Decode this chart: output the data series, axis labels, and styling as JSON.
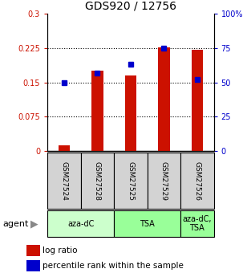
{
  "title": "GDS920 / 12756",
  "samples": [
    "GSM27524",
    "GSM27528",
    "GSM27525",
    "GSM27529",
    "GSM27526"
  ],
  "log_ratio": [
    0.012,
    0.175,
    0.165,
    0.226,
    0.222
  ],
  "percentile": [
    49.5,
    57.0,
    63.5,
    74.8,
    52.0
  ],
  "agent_groups": [
    {
      "label": "aza-dC",
      "start": 0,
      "end": 2,
      "color": "#ccffcc"
    },
    {
      "label": "TSA",
      "start": 2,
      "end": 4,
      "color": "#99ff99"
    },
    {
      "label": "aza-dC,\nTSA",
      "start": 4,
      "end": 5,
      "color": "#99ff99"
    }
  ],
  "bar_color": "#cc1100",
  "dot_color": "#0000cc",
  "left_axis_color": "#cc1100",
  "right_axis_color": "#0000cc",
  "ylim_left": [
    0,
    0.3
  ],
  "ylim_right": [
    0,
    100
  ],
  "yticks_left": [
    0,
    0.075,
    0.15,
    0.225,
    0.3
  ],
  "ytick_labels_left": [
    "0",
    "0.075",
    "0.15",
    "0.225",
    "0.3"
  ],
  "yticks_right": [
    0,
    25,
    50,
    75,
    100
  ],
  "ytick_labels_right": [
    "0",
    "25",
    "50",
    "75",
    "100%"
  ],
  "bar_width": 0.35,
  "legend_log_ratio": "log ratio",
  "legend_percentile": "percentile rank within the sample",
  "agent_label": "agent",
  "background_color": "#ffffff",
  "sample_box_color": "#d3d3d3",
  "aza_dc_color": "#ccffcc",
  "tsa_color": "#99ff99"
}
